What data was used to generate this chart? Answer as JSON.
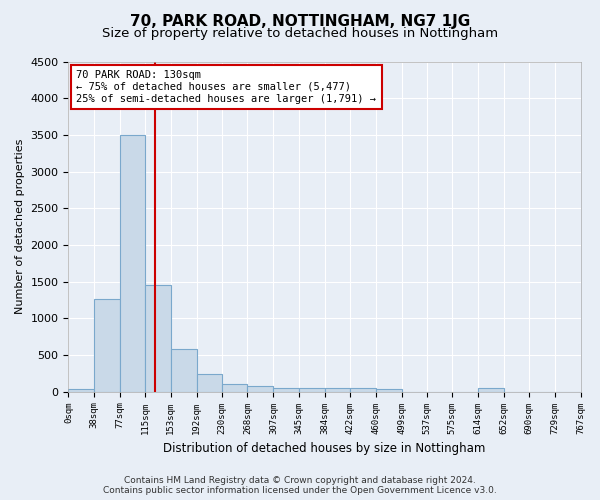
{
  "title1": "70, PARK ROAD, NOTTINGHAM, NG7 1JG",
  "title2": "Size of property relative to detached houses in Nottingham",
  "xlabel": "Distribution of detached houses by size in Nottingham",
  "ylabel": "Number of detached properties",
  "bar_edges": [
    0,
    38,
    77,
    115,
    153,
    192,
    230,
    268,
    307,
    345,
    384,
    422,
    460,
    499,
    537,
    575,
    614,
    652,
    690,
    729,
    767
  ],
  "bar_heights": [
    40,
    1270,
    3500,
    1460,
    580,
    240,
    110,
    80,
    55,
    45,
    50,
    45,
    40,
    0,
    0,
    0,
    55,
    0,
    0,
    0
  ],
  "bar_color": "#c9d9e8",
  "bar_edge_color": "#7aa8cc",
  "vline_x": 130,
  "vline_color": "#cc0000",
  "ylim": [
    0,
    4500
  ],
  "yticks": [
    0,
    500,
    1000,
    1500,
    2000,
    2500,
    3000,
    3500,
    4000,
    4500
  ],
  "annotation_text": "70 PARK ROAD: 130sqm\n← 75% of detached houses are smaller (5,477)\n25% of semi-detached houses are larger (1,791) →",
  "annotation_box_color": "#ffffff",
  "annotation_border_color": "#cc0000",
  "footer_text": "Contains HM Land Registry data © Crown copyright and database right 2024.\nContains public sector information licensed under the Open Government Licence v3.0.",
  "bg_color": "#e8eef6",
  "plot_bg_color": "#e8eef6",
  "grid_color": "#ffffff",
  "title1_fontsize": 11,
  "title2_fontsize": 9.5
}
